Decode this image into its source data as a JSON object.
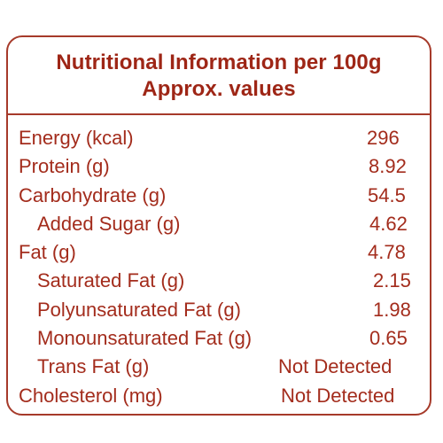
{
  "title": {
    "line1": "Nutritional Information per 100g",
    "line2": "Approx. values"
  },
  "colors": {
    "border": "#a63a2a",
    "text": "#a32c1c",
    "title": "#9e2616"
  },
  "rows": [
    {
      "label": "Energy (kcal)",
      "value": "296"
    },
    {
      "label": "Protein (g)",
      "value": "8.92"
    },
    {
      "label": "Carbohydrate (g)",
      "value": "54.5"
    },
    {
      "label": "Added Sugar (g)",
      "value": "4.62"
    },
    {
      "label": "Fat (g)",
      "value": "4.78"
    },
    {
      "label": "Saturated Fat (g)",
      "value": "2.15"
    },
    {
      "label": "Polyunsaturated Fat (g)",
      "value": "1.98"
    },
    {
      "label": "Monounsaturated Fat (g)",
      "value": "0.65"
    },
    {
      "label": "Trans Fat (g)",
      "value": "Not Detected"
    },
    {
      "label": "Cholesterol (mg)",
      "value": "Not Detected"
    }
  ]
}
